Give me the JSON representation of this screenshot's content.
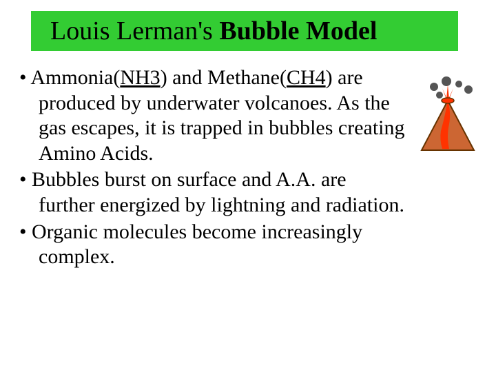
{
  "title": {
    "prefix": "Louis Lerman's ",
    "bold": "Bubble Model",
    "background_color": "#33cc33",
    "fontsize": 38
  },
  "bullets": [
    {
      "parts": [
        {
          "text": "Ammonia(",
          "u": false
        },
        {
          "text": "NH3",
          "u": true
        },
        {
          "text": ") and Methane(",
          "u": false
        },
        {
          "text": "CH4",
          "u": true
        },
        {
          "text": ") are produced by underwater volcanoes. As the gas escapes, it is trapped in bubbles creating Amino Acids.",
          "u": false
        }
      ]
    },
    {
      "parts": [
        {
          "text": "Bubbles burst on surface and A.A. are further energized by lightning and radiation.",
          "u": false
        }
      ]
    },
    {
      "parts": [
        {
          "text": "Organic molecules become increasingly complex.",
          "u": false
        }
      ]
    }
  ],
  "bullet_fontsize": 30,
  "icon": {
    "name": "volcano-icon",
    "mountain_color": "#cc6633",
    "lava_color": "#ff3300",
    "smoke_color": "#555555",
    "outline_color": "#663300"
  },
  "background_color": "#ffffff",
  "text_color": "#000000"
}
